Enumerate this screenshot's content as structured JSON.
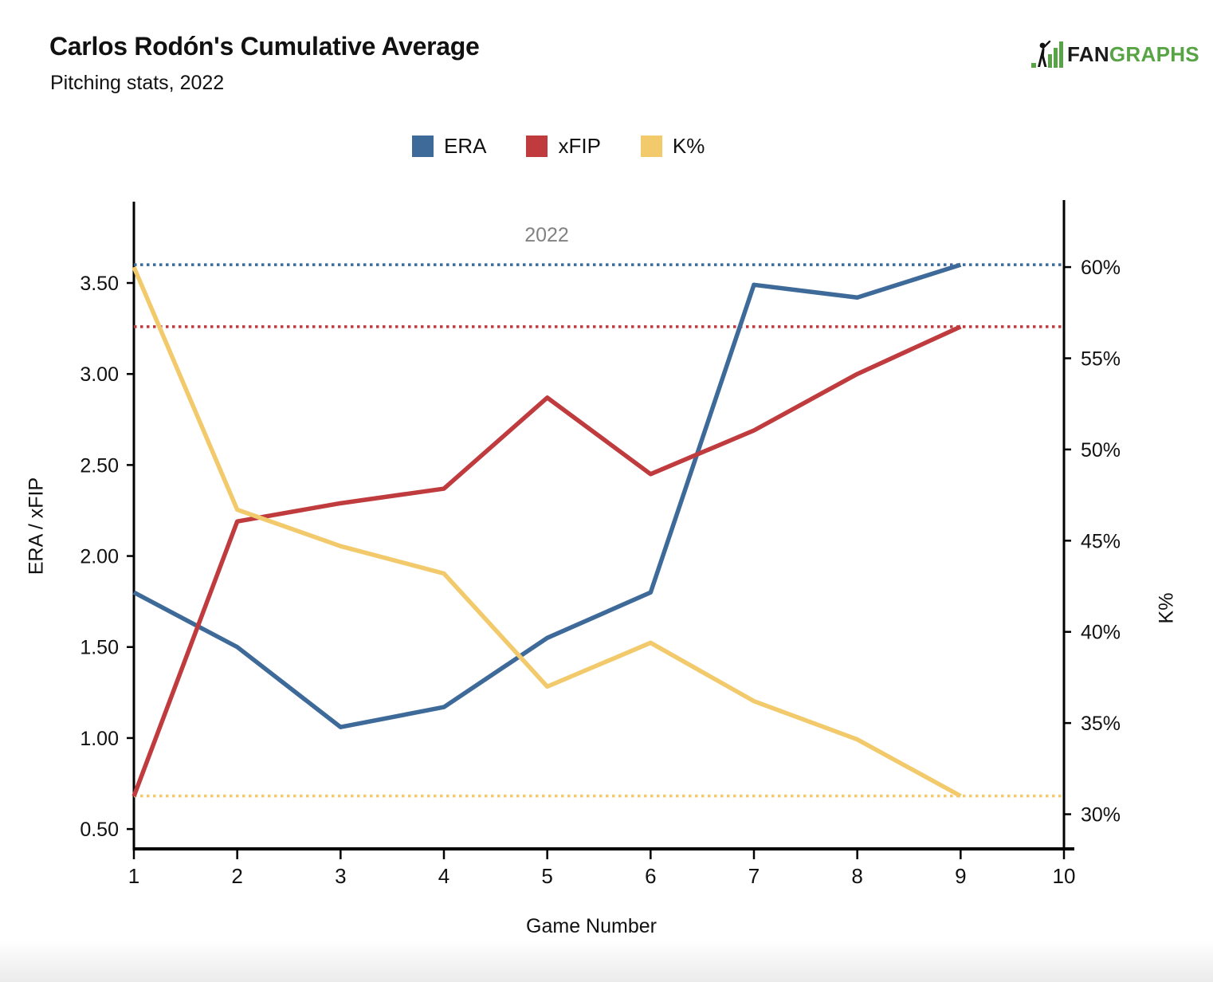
{
  "header": {
    "title": "Carlos Rodón's Cumulative Average",
    "subtitle": "Pitching stats, 2022"
  },
  "logo": {
    "fan": "FAN",
    "graphs": "GRAPHS",
    "green": "#57A345"
  },
  "chart_data": {
    "type": "line",
    "x": [
      1,
      2,
      3,
      4,
      5,
      6,
      7,
      8,
      9
    ],
    "annotation": "2022",
    "x_axis": {
      "label": "Game Number",
      "ticks": [
        1,
        2,
        3,
        4,
        5,
        6,
        7,
        8,
        9,
        10
      ],
      "range": [
        1,
        10
      ]
    },
    "left_axis": {
      "label": "ERA / xFIP",
      "ticks": [
        3.5,
        3.0,
        2.5,
        2.0,
        1.5,
        1.0,
        0.5
      ],
      "range": [
        0.391,
        3.938
      ]
    },
    "right_axis": {
      "label": "K%",
      "ticks": [
        60,
        55,
        50,
        45,
        40,
        35,
        30
      ],
      "range": [
        28.1,
        63.5
      ]
    },
    "grid": false,
    "legend_position": "top-center",
    "series": [
      {
        "name": "ERA",
        "color": "#3E6A99",
        "axis": "left",
        "values": [
          1.8,
          1.5,
          1.06,
          1.17,
          1.55,
          1.8,
          3.49,
          3.42,
          3.6
        ],
        "final_reference": 3.6
      },
      {
        "name": "xFIP",
        "color": "#BF3B3D",
        "axis": "left",
        "values": [
          0.68,
          2.19,
          2.29,
          2.37,
          2.87,
          2.45,
          2.69,
          3.0,
          3.26
        ],
        "final_reference": 3.26
      },
      {
        "name": "K%",
        "color": "#F2CA6B",
        "axis": "right",
        "values": [
          60.0,
          46.7,
          44.7,
          43.2,
          37.0,
          39.4,
          36.2,
          34.1,
          31.0
        ],
        "final_reference": 31.0
      }
    ]
  }
}
